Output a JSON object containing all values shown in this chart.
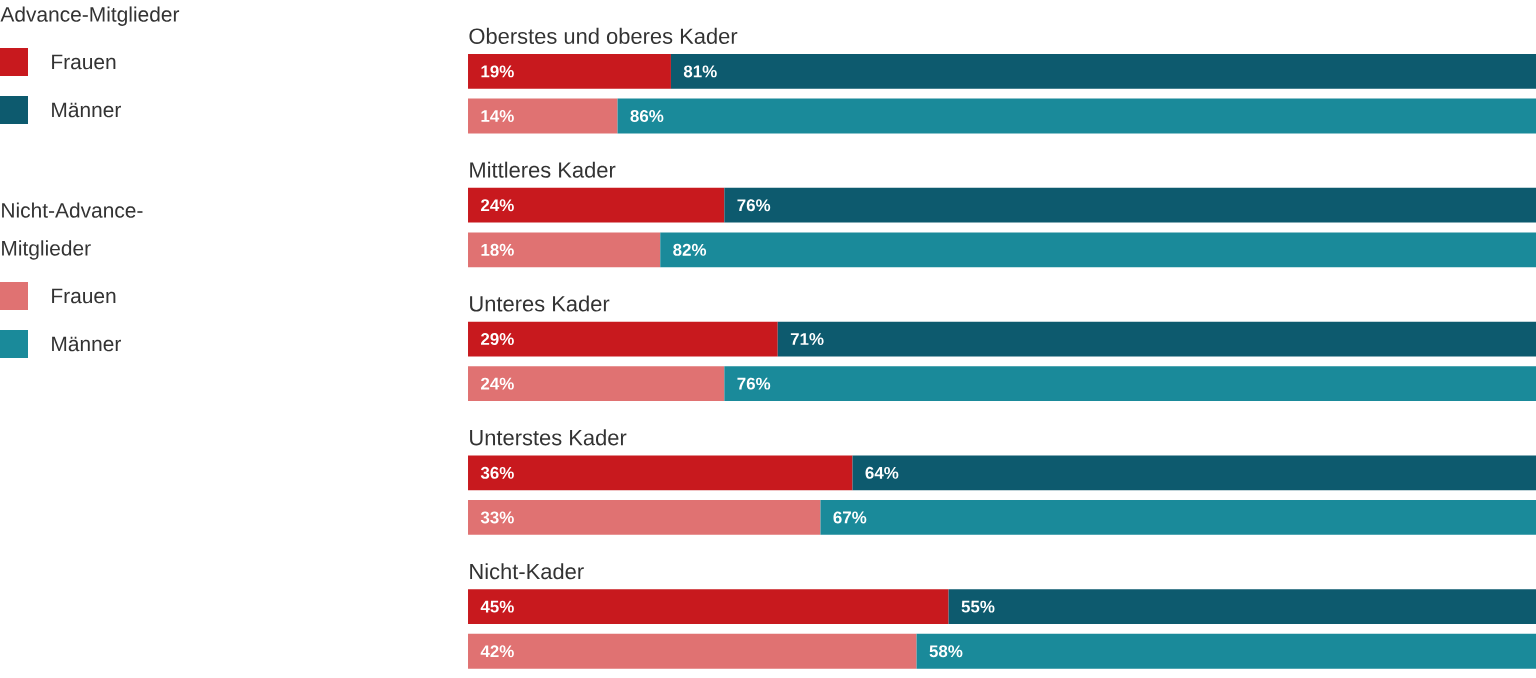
{
  "chart_data": {
    "type": "bar",
    "orientation": "horizontal",
    "stacked": true,
    "legend": "left",
    "categories": [
      "Oberstes und oberes Kader",
      null,
      "Mittleres Kader",
      null,
      "Unteres Kader",
      null,
      "Unterstes Kader",
      null,
      "Nicht-Kader",
      null
    ],
    "annotations": [
      "Advance-Mitglieder",
      "Nicht-Advance-Mitglieder"
    ],
    "series": [
      {
        "name": "Frauen",
        "color": "#c8191e",
        "values": [
          19,
          null,
          24,
          null,
          29,
          null,
          36,
          null,
          45,
          null
        ],
        "value_labels": [
          "19%",
          null,
          "24%",
          null,
          "29%",
          null,
          "36%",
          null,
          "45%",
          null
        ]
      },
      {
        "name": "Männer",
        "color": "#0d5a6e",
        "values": [
          81,
          null,
          76,
          null,
          71,
          null,
          64,
          null,
          55,
          null
        ],
        "value_labels": [
          "81%",
          null,
          "76%",
          null,
          "71%",
          null,
          "64%",
          null,
          "55%",
          null
        ]
      },
      {
        "name": "Frauen",
        "color": "#e07272",
        "values": [
          null,
          14,
          null,
          18,
          null,
          24,
          null,
          33,
          null,
          42
        ],
        "value_labels": [
          null,
          "14%",
          null,
          "18%",
          null,
          "24%",
          null,
          "33%",
          null,
          "42%"
        ]
      },
      {
        "name": "Männer",
        "color": "#1a8a9a",
        "values": [
          null,
          86,
          null,
          82,
          null,
          76,
          null,
          67,
          null,
          58
        ],
        "value_labels": [
          null,
          "86%",
          null,
          "82%",
          null,
          "76%",
          null,
          "67%",
          null,
          "58%"
        ]
      }
    ]
  }
}
